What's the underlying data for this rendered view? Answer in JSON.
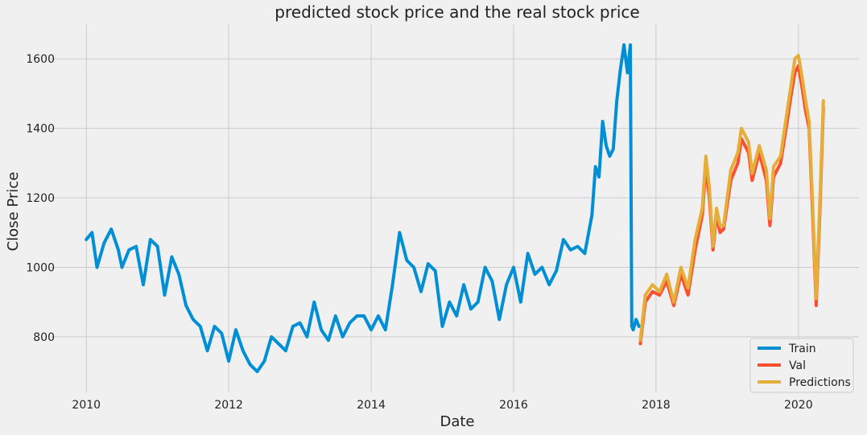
{
  "chart_data": {
    "type": "line",
    "title": "predicted stock price and the real stock price",
    "xlabel": "Date",
    "ylabel": "Close Price",
    "xlim": [
      2009.5,
      2020.85
    ],
    "ylim": [
      640,
      1700
    ],
    "x_ticks": [
      2010,
      2012,
      2014,
      2016,
      2018,
      2020
    ],
    "x_tick_labels": [
      "2010",
      "2012",
      "2014",
      "2016",
      "2018",
      "2020"
    ],
    "y_ticks": [
      800,
      1000,
      1200,
      1400,
      1600
    ],
    "y_tick_labels": [
      "800",
      "1000",
      "1200",
      "1400",
      "1600"
    ],
    "grid": true,
    "legend_position": "lower-right",
    "series": [
      {
        "name": "Train",
        "color": "#008fd5",
        "x": [
          2010.0,
          2010.08,
          2010.15,
          2010.25,
          2010.35,
          2010.45,
          2010.5,
          2010.6,
          2010.7,
          2010.8,
          2010.9,
          2011.0,
          2011.1,
          2011.2,
          2011.3,
          2011.4,
          2011.5,
          2011.6,
          2011.7,
          2011.8,
          2011.9,
          2012.0,
          2012.1,
          2012.2,
          2012.3,
          2012.4,
          2012.5,
          2012.6,
          2012.7,
          2012.8,
          2012.9,
          2013.0,
          2013.1,
          2013.2,
          2013.3,
          2013.4,
          2013.5,
          2013.6,
          2013.7,
          2013.8,
          2013.9,
          2014.0,
          2014.1,
          2014.2,
          2014.3,
          2014.4,
          2014.5,
          2014.6,
          2014.7,
          2014.8,
          2014.9,
          2015.0,
          2015.1,
          2015.2,
          2015.3,
          2015.4,
          2015.5,
          2015.6,
          2015.7,
          2015.8,
          2015.9,
          2016.0,
          2016.1,
          2016.2,
          2016.3,
          2016.4,
          2016.5,
          2016.6,
          2016.7,
          2016.8,
          2016.9,
          2017.0,
          2017.1,
          2017.15,
          2017.2,
          2017.25,
          2017.3,
          2017.35,
          2017.4,
          2017.45,
          2017.5,
          2017.55,
          2017.6,
          2017.64,
          2017.66,
          2017.68,
          2017.72,
          2017.76
        ],
        "values": [
          1080,
          1100,
          1000,
          1070,
          1110,
          1050,
          1000,
          1050,
          1060,
          950,
          1080,
          1060,
          920,
          1030,
          980,
          890,
          850,
          830,
          760,
          830,
          810,
          730,
          820,
          760,
          720,
          700,
          730,
          800,
          780,
          760,
          830,
          840,
          800,
          900,
          820,
          790,
          860,
          800,
          840,
          860,
          860,
          820,
          860,
          820,
          950,
          1100,
          1020,
          1000,
          930,
          1010,
          990,
          830,
          900,
          860,
          950,
          880,
          900,
          1000,
          960,
          850,
          950,
          1000,
          900,
          1040,
          980,
          1000,
          950,
          990,
          1080,
          1050,
          1060,
          1040,
          1150,
          1290,
          1260,
          1420,
          1350,
          1320,
          1340,
          1480,
          1570,
          1640,
          1560,
          1640,
          830,
          820,
          850,
          830
        ]
      },
      {
        "name": "Val",
        "color": "#fc4f30",
        "x": [
          2017.78,
          2017.85,
          2017.95,
          2018.05,
          2018.15,
          2018.25,
          2018.35,
          2018.45,
          2018.55,
          2018.65,
          2018.7,
          2018.75,
          2018.8,
          2018.85,
          2018.9,
          2018.95,
          2019.05,
          2019.15,
          2019.2,
          2019.3,
          2019.35,
          2019.45,
          2019.55,
          2019.6,
          2019.65,
          2019.75,
          2019.85,
          2019.9,
          2019.95,
          2020.0,
          2020.05,
          2020.1,
          2020.15,
          2020.2,
          2020.25,
          2020.3,
          2020.35
        ],
        "values": [
          780,
          900,
          930,
          920,
          960,
          890,
          980,
          920,
          1050,
          1150,
          1290,
          1200,
          1050,
          1150,
          1100,
          1110,
          1250,
          1300,
          1370,
          1330,
          1250,
          1330,
          1250,
          1120,
          1260,
          1300,
          1430,
          1500,
          1560,
          1580,
          1520,
          1450,
          1400,
          1150,
          890,
          1150,
          1460
        ]
      },
      {
        "name": "Predictions",
        "color": "#e5ae38",
        "x": [
          2017.78,
          2017.85,
          2017.95,
          2018.05,
          2018.15,
          2018.25,
          2018.35,
          2018.45,
          2018.55,
          2018.65,
          2018.7,
          2018.75,
          2018.8,
          2018.85,
          2018.9,
          2018.95,
          2019.05,
          2019.15,
          2019.2,
          2019.3,
          2019.35,
          2019.45,
          2019.55,
          2019.6,
          2019.65,
          2019.75,
          2019.85,
          2019.9,
          2019.95,
          2020.0,
          2020.05,
          2020.1,
          2020.15,
          2020.2,
          2020.25,
          2020.3,
          2020.35
        ],
        "values": [
          790,
          920,
          950,
          930,
          980,
          900,
          1000,
          940,
          1080,
          1170,
          1320,
          1230,
          1060,
          1170,
          1120,
          1120,
          1280,
          1330,
          1400,
          1360,
          1270,
          1350,
          1280,
          1140,
          1290,
          1320,
          1460,
          1530,
          1600,
          1610,
          1550,
          1480,
          1420,
          1180,
          910,
          1180,
          1480
        ]
      }
    ]
  }
}
